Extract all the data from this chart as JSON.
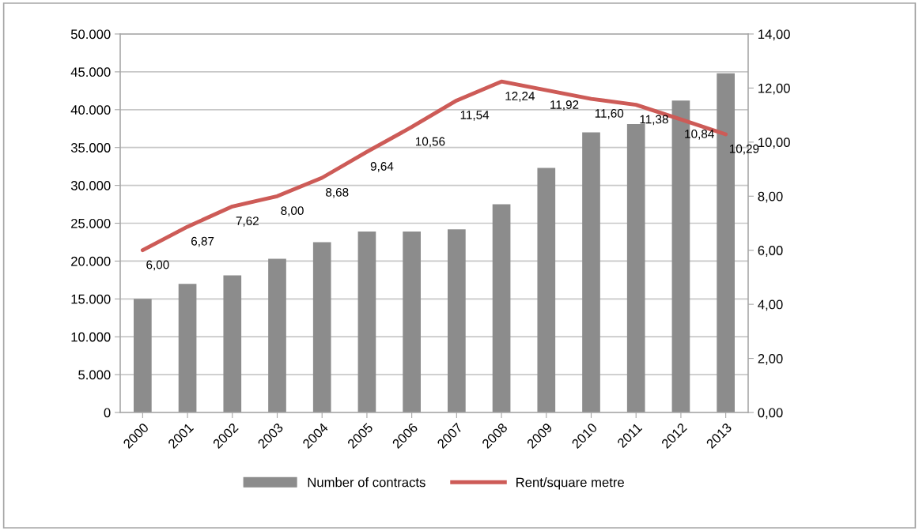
{
  "chart_data": {
    "type": "bar",
    "categories": [
      "2000",
      "2001",
      "2002",
      "2003",
      "2004",
      "2005",
      "2006",
      "2007",
      "2008",
      "2009",
      "2010",
      "2011",
      "2012",
      "2013"
    ],
    "series": [
      {
        "name": "Number of contracts",
        "color": "#8c8c8c",
        "values": [
          15000,
          17000,
          18100,
          20300,
          22500,
          23900,
          23900,
          24200,
          27500,
          32300,
          37000,
          38100,
          41200,
          44800
        ]
      },
      {
        "name": "Rent/square metre",
        "type": "line",
        "axis": "y2",
        "color": "#cd5b57",
        "values": [
          6.0,
          6.87,
          7.62,
          8.0,
          8.68,
          9.64,
          10.56,
          11.54,
          12.24,
          11.92,
          11.6,
          11.38,
          10.84,
          10.29
        ],
        "value_labels": [
          "6,00",
          "6,87",
          "7,62",
          "8,00",
          "8,68",
          "9,64",
          "10,56",
          "11,54",
          "12,24",
          "11,92",
          "11,60",
          "11,38",
          "10,84",
          "10,29"
        ]
      }
    ],
    "ylim": [
      0,
      50000
    ],
    "yticks": [
      {
        "value": 0,
        "label": "0"
      },
      {
        "value": 5000,
        "label": "5.000"
      },
      {
        "value": 10000,
        "label": "10.000"
      },
      {
        "value": 15000,
        "label": "15.000"
      },
      {
        "value": 20000,
        "label": "20.000"
      },
      {
        "value": 25000,
        "label": "25.000"
      },
      {
        "value": 30000,
        "label": "30.000"
      },
      {
        "value": 35000,
        "label": "35.000"
      },
      {
        "value": 40000,
        "label": "40.000"
      },
      {
        "value": 45000,
        "label": "45.000"
      },
      {
        "value": 50000,
        "label": "50.000"
      }
    ],
    "y2lim": [
      0,
      14
    ],
    "y2ticks": [
      {
        "value": 0,
        "label": "0,00"
      },
      {
        "value": 2,
        "label": "2,00"
      },
      {
        "value": 4,
        "label": "4,00"
      },
      {
        "value": 6,
        "label": "6,00"
      },
      {
        "value": 8,
        "label": "8,00"
      },
      {
        "value": 10,
        "label": "10,00"
      },
      {
        "value": 12,
        "label": "12,00"
      },
      {
        "value": 14,
        "label": "14,00"
      }
    ],
    "grid": "y",
    "legend": "bottom",
    "marker": "none",
    "line_style": "solid"
  }
}
